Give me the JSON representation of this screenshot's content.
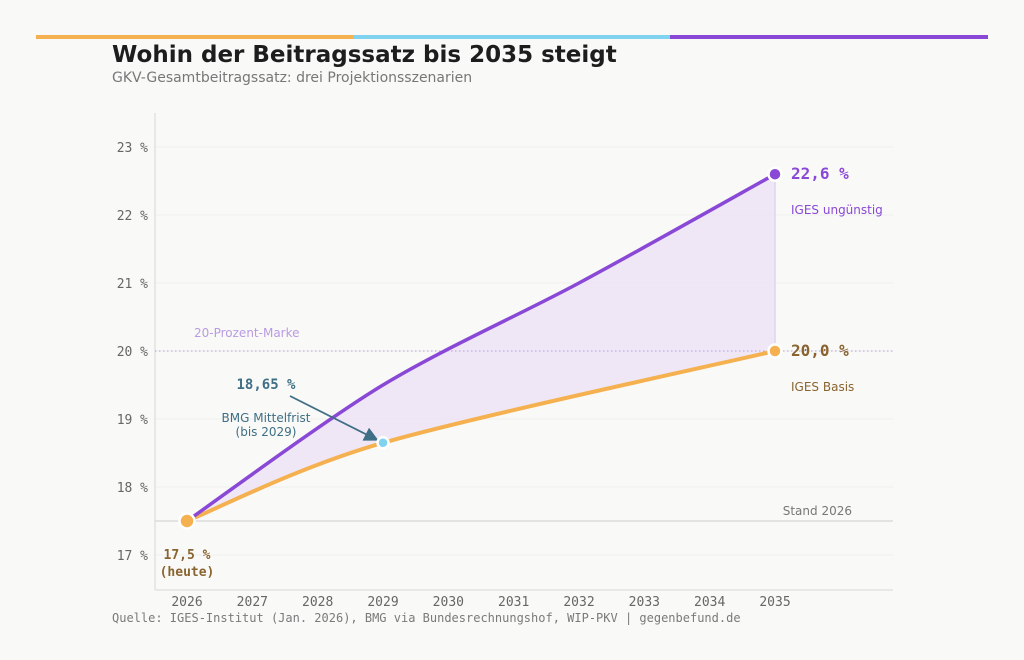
{
  "header": {
    "title": "Wohin der Beitragssatz bis 2035 steigt",
    "subtitle": "GKV-Gesamtbeitragssatz: drei Projektionsszenarien",
    "accent_colors": [
      "#f5b04f",
      "#7fd3ef",
      "#8a48d6"
    ]
  },
  "footer": {
    "source": "Quelle: IGES-Institut (Jan. 2026), BMG via Bundesrechnungshof, WIP-PKV | gegenbefund.de"
  },
  "chart_data": {
    "type": "line",
    "title": "Wohin der Beitragssatz bis 2035 steigt",
    "subtitle": "GKV-Gesamtbeitragssatz: drei Projektionsszenarien",
    "xlabel": "",
    "ylabel": "",
    "x_ticks": [
      "2026",
      "2027",
      "2028",
      "2029",
      "2030",
      "2031",
      "2032",
      "2033",
      "2034",
      "2035"
    ],
    "y_ticks": [
      "17 %",
      "18 %",
      "19 %",
      "20 %",
      "21 %",
      "22 %",
      "23 %"
    ],
    "xlim": [
      2025.9,
      2036.8
    ],
    "ylim": [
      16.6,
      23.5
    ],
    "grid": "horizontal",
    "series": [
      {
        "name": "IGES ungünstig",
        "color": "#8a48d6",
        "x": [
          2026,
          2029,
          2032,
          2035
        ],
        "values": [
          17.5,
          19.5,
          21.0,
          22.6
        ],
        "end_label": "22,6 %",
        "end_caption": "IGES ungünstig"
      },
      {
        "name": "IGES Basis",
        "color": "#f5b04f",
        "x": [
          2026,
          2029,
          2035
        ],
        "values": [
          17.5,
          18.65,
          20.0
        ],
        "end_label": "20,0 %",
        "end_caption": "IGES Basis",
        "label_color": "#8a6430"
      }
    ],
    "points": [
      {
        "name": "heute",
        "x": 2026,
        "y": 17.5,
        "label": "17,5 %",
        "label2": "(heute)",
        "color": "#f5b04f"
      },
      {
        "name": "BMG Mittelfrist",
        "x": 2029,
        "y": 18.65,
        "label": "18,65 %",
        "caption1": "BMG Mittelfrist",
        "caption2": "(bis 2029)",
        "color": "#7fd3ef",
        "label_color": "#3f6f86"
      }
    ],
    "reference_lines": [
      {
        "y": 20.0,
        "label": "20-Prozent-Marke",
        "style": "dotted",
        "color": "#b99be3"
      },
      {
        "y": 17.5,
        "label": "Stand 2026",
        "style": "solid",
        "color": "#dcdcdc"
      }
    ],
    "shaded_band": {
      "between": [
        "IGES Basis",
        "IGES ungünstig"
      ],
      "color": "#ede4f6"
    }
  }
}
